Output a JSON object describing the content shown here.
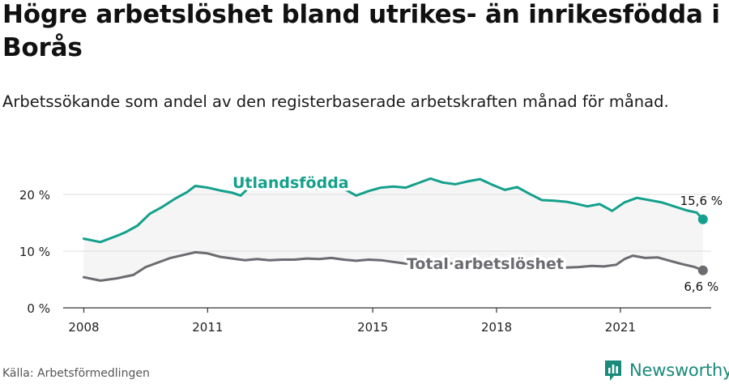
{
  "title": "Högre arbetslöshet bland utrikes- än inrikesfödda i Borås",
  "subtitle": "Arbetssökande som andel av den registerbaserade arbetskraften månad för månad.",
  "source": "Källa: Arbetsförmedlingen",
  "brand": {
    "name": "Newsworthy",
    "icon": "newsworthy-logo-icon",
    "color": "#1a8a7a"
  },
  "colors": {
    "foreign": "#14a08c",
    "total": "#6b6b70",
    "band": "#f5f5f5",
    "grid": "#dddddd",
    "axis": "#333333"
  },
  "chart_data": {
    "type": "line",
    "title": "",
    "xlabel": "",
    "ylabel": "",
    "xlim": [
      2007.5,
      2023.2
    ],
    "ylim": [
      0,
      20
    ],
    "grid": true,
    "legend": "inline labels",
    "x_ticks": [
      2008,
      2011,
      2015,
      2018,
      2021
    ],
    "x_tick_labels": [
      "2008",
      "2011",
      "2015",
      "2018",
      "2021"
    ],
    "y_ticks": [
      0,
      10,
      20
    ],
    "y_tick_labels": [
      "0 %",
      "10 %",
      "20 %"
    ],
    "series": [
      {
        "name": "Utlandsfödda",
        "color": "#14a08c",
        "end_label": "15,6 %",
        "points": [
          [
            2008.0,
            12.2
          ],
          [
            2008.4,
            11.6
          ],
          [
            2008.8,
            12.7
          ],
          [
            2009.0,
            13.3
          ],
          [
            2009.3,
            14.5
          ],
          [
            2009.6,
            16.6
          ],
          [
            2009.9,
            17.8
          ],
          [
            2010.2,
            19.2
          ],
          [
            2010.5,
            20.4
          ],
          [
            2010.7,
            21.5
          ],
          [
            2011.0,
            21.2
          ],
          [
            2011.3,
            20.7
          ],
          [
            2011.6,
            20.3
          ],
          [
            2011.8,
            19.8
          ],
          [
            2012.0,
            21.2
          ],
          [
            2012.3,
            21.8
          ],
          [
            2012.6,
            21.5
          ],
          [
            2013.0,
            21.3
          ],
          [
            2013.4,
            21.1
          ],
          [
            2013.8,
            21.0
          ],
          [
            2014.1,
            21.6
          ],
          [
            2014.4,
            20.6
          ],
          [
            2014.6,
            19.8
          ],
          [
            2014.9,
            20.6
          ],
          [
            2015.2,
            21.2
          ],
          [
            2015.5,
            21.4
          ],
          [
            2015.8,
            21.2
          ],
          [
            2016.1,
            22.0
          ],
          [
            2016.4,
            22.8
          ],
          [
            2016.7,
            22.1
          ],
          [
            2017.0,
            21.8
          ],
          [
            2017.3,
            22.3
          ],
          [
            2017.6,
            22.7
          ],
          [
            2017.9,
            21.7
          ],
          [
            2018.2,
            20.8
          ],
          [
            2018.5,
            21.3
          ],
          [
            2018.8,
            20.1
          ],
          [
            2019.1,
            19.0
          ],
          [
            2019.4,
            18.9
          ],
          [
            2019.7,
            18.7
          ],
          [
            2019.9,
            18.4
          ],
          [
            2020.2,
            17.9
          ],
          [
            2020.5,
            18.3
          ],
          [
            2020.8,
            17.1
          ],
          [
            2021.1,
            18.6
          ],
          [
            2021.4,
            19.4
          ],
          [
            2021.7,
            19.0
          ],
          [
            2022.0,
            18.6
          ],
          [
            2022.3,
            17.9
          ],
          [
            2022.6,
            17.2
          ],
          [
            2022.85,
            16.8
          ],
          [
            2023.0,
            15.6
          ]
        ]
      },
      {
        "name": "Total arbetslöshet",
        "color": "#6b6b70",
        "end_label": "6,6 %",
        "points": [
          [
            2008.0,
            5.4
          ],
          [
            2008.4,
            4.8
          ],
          [
            2008.8,
            5.2
          ],
          [
            2009.2,
            5.8
          ],
          [
            2009.5,
            7.2
          ],
          [
            2009.8,
            8.0
          ],
          [
            2010.1,
            8.8
          ],
          [
            2010.4,
            9.3
          ],
          [
            2010.7,
            9.8
          ],
          [
            2011.0,
            9.6
          ],
          [
            2011.3,
            9.0
          ],
          [
            2011.6,
            8.7
          ],
          [
            2011.9,
            8.4
          ],
          [
            2012.2,
            8.6
          ],
          [
            2012.5,
            8.4
          ],
          [
            2012.8,
            8.5
          ],
          [
            2013.1,
            8.5
          ],
          [
            2013.4,
            8.7
          ],
          [
            2013.7,
            8.6
          ],
          [
            2014.0,
            8.8
          ],
          [
            2014.3,
            8.5
          ],
          [
            2014.6,
            8.3
          ],
          [
            2014.9,
            8.5
          ],
          [
            2015.2,
            8.4
          ],
          [
            2015.5,
            8.1
          ],
          [
            2015.8,
            7.8
          ],
          [
            2016.1,
            7.9
          ],
          [
            2016.4,
            8.1
          ],
          [
            2016.7,
            7.9
          ],
          [
            2017.0,
            7.8
          ],
          [
            2017.3,
            7.6
          ],
          [
            2017.6,
            7.8
          ],
          [
            2017.9,
            7.5
          ],
          [
            2018.2,
            7.3
          ],
          [
            2018.5,
            7.4
          ],
          [
            2018.8,
            7.5
          ],
          [
            2019.1,
            7.2
          ],
          [
            2019.4,
            7.3
          ],
          [
            2019.7,
            7.1
          ],
          [
            2020.0,
            7.2
          ],
          [
            2020.3,
            7.4
          ],
          [
            2020.6,
            7.3
          ],
          [
            2020.9,
            7.6
          ],
          [
            2021.1,
            8.6
          ],
          [
            2021.3,
            9.2
          ],
          [
            2021.6,
            8.8
          ],
          [
            2021.9,
            8.9
          ],
          [
            2022.2,
            8.3
          ],
          [
            2022.5,
            7.7
          ],
          [
            2022.8,
            7.2
          ],
          [
            2023.0,
            6.6
          ]
        ]
      }
    ]
  }
}
